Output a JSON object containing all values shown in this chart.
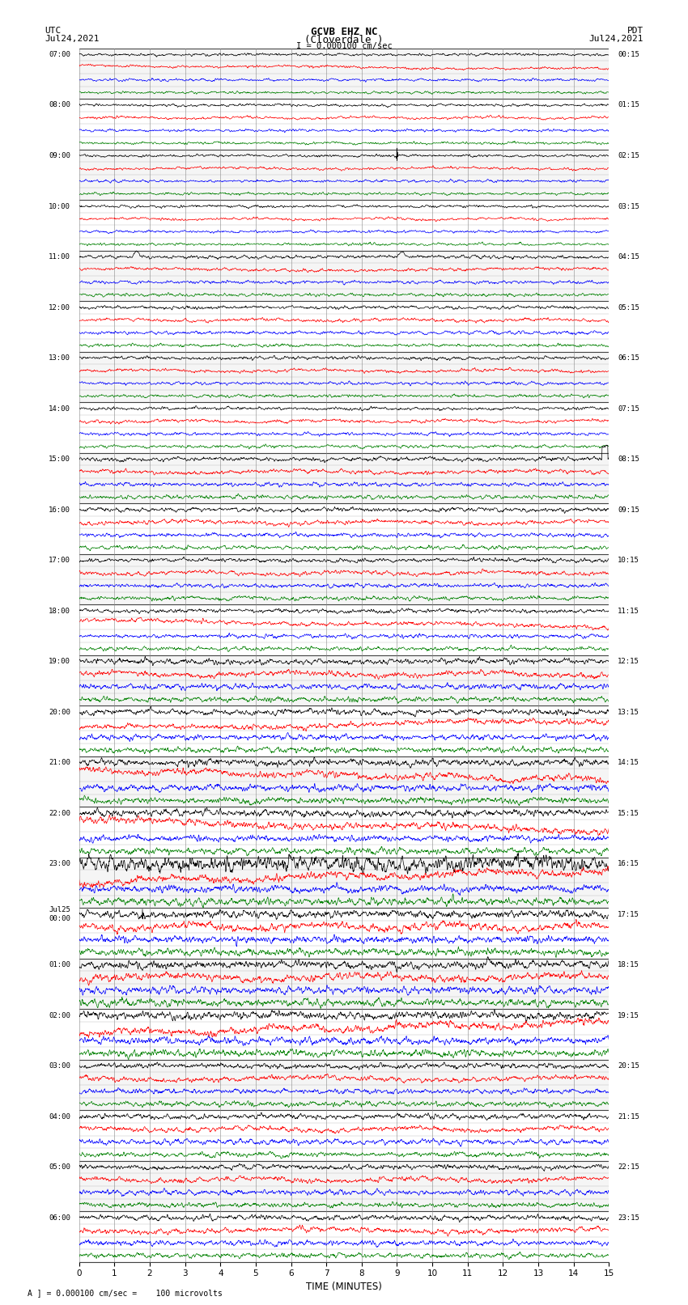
{
  "title_line1": "GCVB EHZ NC",
  "title_line2": "(Cloverdale )",
  "scale_text": "I = 0.000100 cm/sec",
  "label_left_line1": "UTC",
  "label_left_line2": "Jul24,2021",
  "label_right_line1": "PDT",
  "label_right_line2": "Jul24,2021",
  "xlabel": "TIME (MINUTES)",
  "footer": "A ] = 0.000100 cm/sec =    100 microvolts",
  "x_ticks": [
    0,
    1,
    2,
    3,
    4,
    5,
    6,
    7,
    8,
    9,
    10,
    11,
    12,
    13,
    14,
    15
  ],
  "colors": [
    "black",
    "red",
    "blue",
    "green"
  ],
  "bg_color": "#ffffff",
  "grid_color": "#888888",
  "n_rows": 96,
  "left_labels": [
    "07:00",
    "",
    "",
    "",
    "08:00",
    "",
    "",
    "",
    "09:00",
    "",
    "",
    "",
    "10:00",
    "",
    "",
    "",
    "11:00",
    "",
    "",
    "",
    "12:00",
    "",
    "",
    "",
    "13:00",
    "",
    "",
    "",
    "14:00",
    "",
    "",
    "",
    "15:00",
    "",
    "",
    "",
    "16:00",
    "",
    "",
    "",
    "17:00",
    "",
    "",
    "",
    "18:00",
    "",
    "",
    "",
    "19:00",
    "",
    "",
    "",
    "20:00",
    "",
    "",
    "",
    "21:00",
    "",
    "",
    "",
    "22:00",
    "",
    "",
    "",
    "23:00",
    "",
    "",
    "",
    "Jul25\n00:00",
    "",
    "",
    "",
    "01:00",
    "",
    "",
    "",
    "02:00",
    "",
    "",
    "",
    "03:00",
    "",
    "",
    "",
    "04:00",
    "",
    "",
    "",
    "05:00",
    "",
    "",
    "",
    "06:00",
    "",
    "",
    ""
  ],
  "right_labels": [
    "00:15",
    "",
    "",
    "",
    "01:15",
    "",
    "",
    "",
    "02:15",
    "",
    "",
    "",
    "03:15",
    "",
    "",
    "",
    "04:15",
    "",
    "",
    "",
    "05:15",
    "",
    "",
    "",
    "06:15",
    "",
    "",
    "",
    "07:15",
    "",
    "",
    "",
    "08:15",
    "",
    "",
    "",
    "09:15",
    "",
    "",
    "",
    "10:15",
    "",
    "",
    "",
    "11:15",
    "",
    "",
    "",
    "12:15",
    "",
    "",
    "",
    "13:15",
    "",
    "",
    "",
    "14:15",
    "",
    "",
    "",
    "15:15",
    "",
    "",
    "",
    "16:15",
    "",
    "",
    "",
    "17:15",
    "",
    "",
    "",
    "18:15",
    "",
    "",
    "",
    "19:15",
    "",
    "",
    "",
    "20:15",
    "",
    "",
    "",
    "21:15",
    "",
    "",
    "",
    "22:15",
    "",
    "",
    "",
    "23:15",
    "",
    "",
    ""
  ]
}
